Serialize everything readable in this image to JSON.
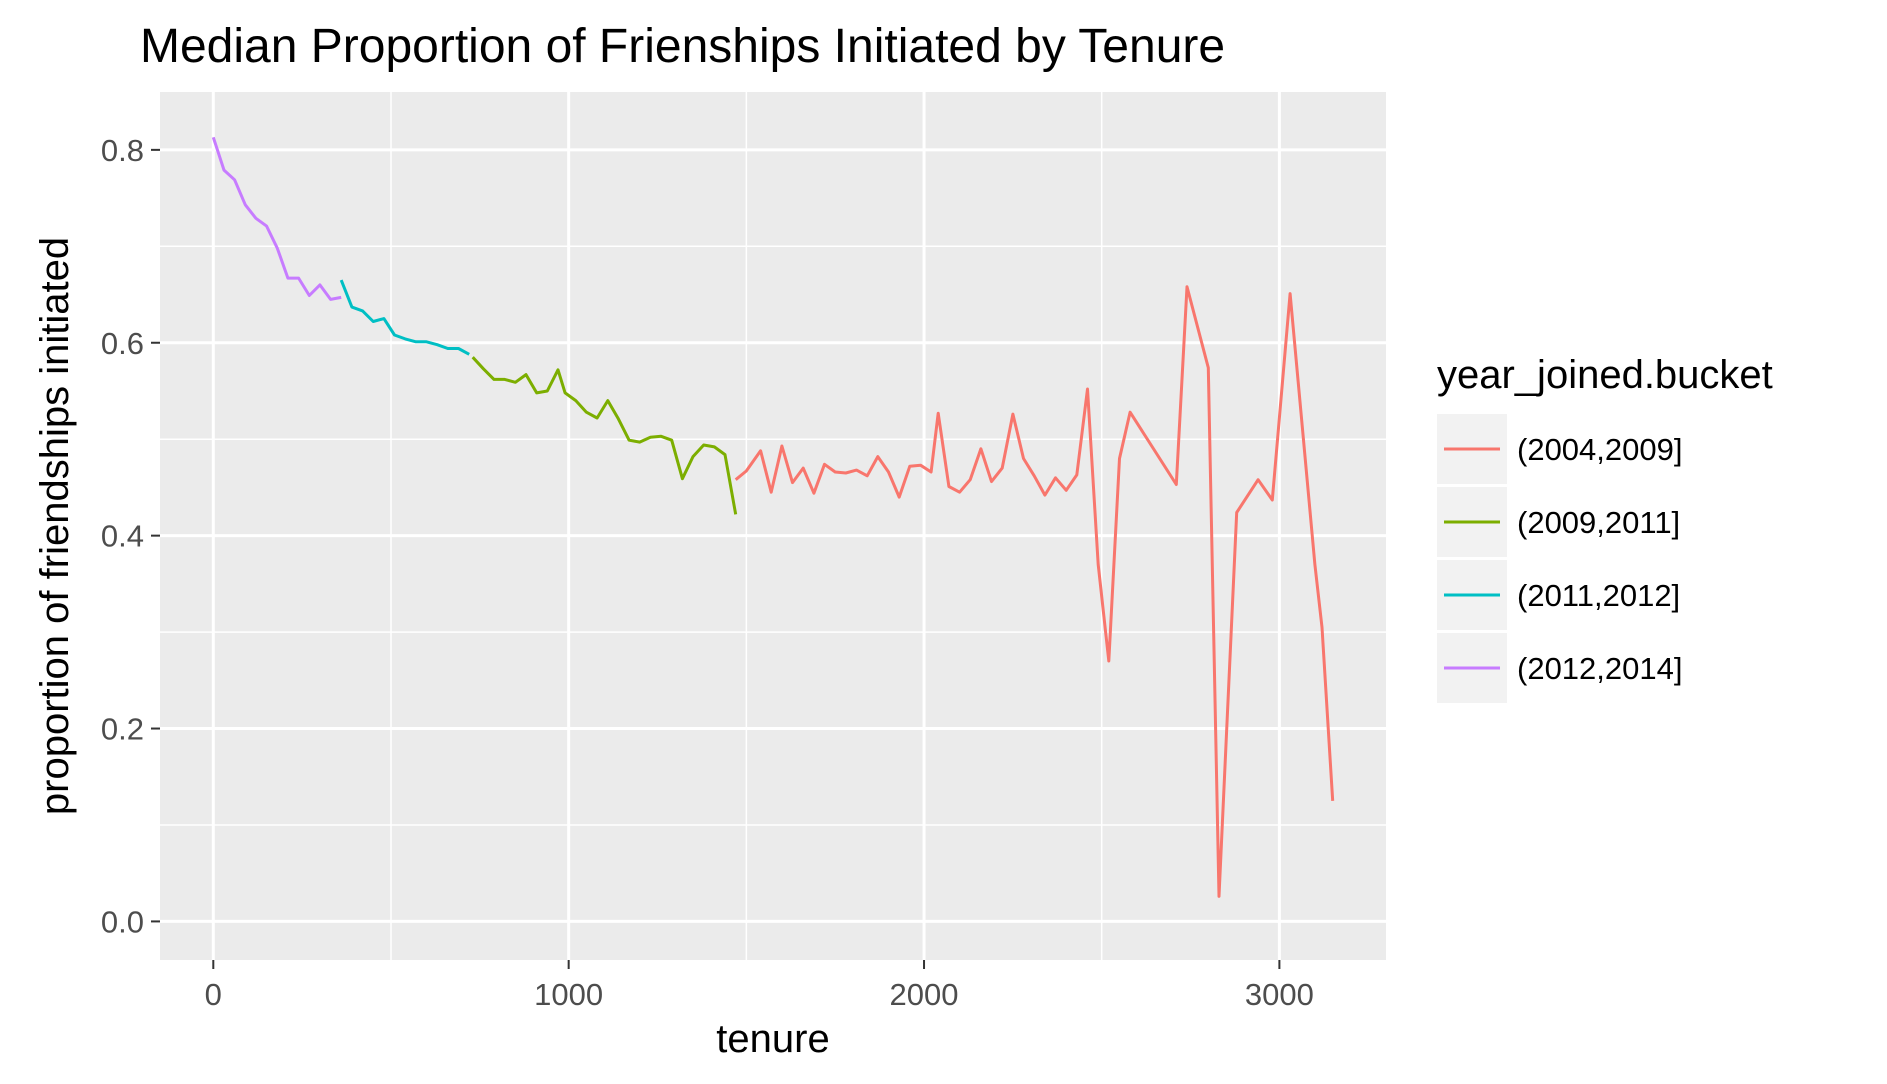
{
  "chart_data": {
    "type": "line",
    "title": "Median Proportion of Frienships Initiated by Tenure",
    "xlabel": "tenure",
    "ylabel": "proportion of friendships initiated",
    "xlim": [
      -150,
      3300
    ],
    "ylim": [
      -0.04,
      0.86
    ],
    "x_ticks": [
      0,
      1000,
      2000,
      3000
    ],
    "x_tick_labels": [
      "0",
      "1000",
      "2000",
      "3000"
    ],
    "y_ticks": [
      0.0,
      0.2,
      0.4,
      0.6,
      0.8
    ],
    "y_tick_labels": [
      "0.0",
      "0.2",
      "0.4",
      "0.6",
      "0.8"
    ],
    "grid": true,
    "legend": {
      "title": "year_joined.bucket",
      "placement": "right"
    },
    "series": [
      {
        "name": "(2004,2009]",
        "color": "#F8766D",
        "points": [
          [
            1470,
            0.458
          ],
          [
            1500,
            0.467
          ],
          [
            1540,
            0.488
          ],
          [
            1570,
            0.445
          ],
          [
            1600,
            0.493
          ],
          [
            1630,
            0.455
          ],
          [
            1660,
            0.47
          ],
          [
            1690,
            0.444
          ],
          [
            1720,
            0.474
          ],
          [
            1750,
            0.466
          ],
          [
            1780,
            0.465
          ],
          [
            1810,
            0.468
          ],
          [
            1840,
            0.462
          ],
          [
            1870,
            0.482
          ],
          [
            1900,
            0.466
          ],
          [
            1930,
            0.44
          ],
          [
            1960,
            0.472
          ],
          [
            1990,
            0.473
          ],
          [
            2020,
            0.466
          ],
          [
            2040,
            0.527
          ],
          [
            2070,
            0.451
          ],
          [
            2100,
            0.445
          ],
          [
            2130,
            0.458
          ],
          [
            2160,
            0.49
          ],
          [
            2190,
            0.456
          ],
          [
            2220,
            0.47
          ],
          [
            2250,
            0.526
          ],
          [
            2280,
            0.48
          ],
          [
            2310,
            0.462
          ],
          [
            2340,
            0.442
          ],
          [
            2370,
            0.46
          ],
          [
            2400,
            0.447
          ],
          [
            2430,
            0.463
          ],
          [
            2460,
            0.552
          ],
          [
            2490,
            0.37
          ],
          [
            2520,
            0.27
          ],
          [
            2550,
            0.48
          ],
          [
            2580,
            0.528
          ],
          [
            2710,
            0.453
          ],
          [
            2740,
            0.658
          ],
          [
            2800,
            0.574
          ],
          [
            2830,
            0.026
          ],
          [
            2880,
            0.424
          ],
          [
            2940,
            0.458
          ],
          [
            2980,
            0.437
          ],
          [
            3030,
            0.651
          ],
          [
            3100,
            0.37
          ],
          [
            3120,
            0.305
          ],
          [
            3150,
            0.125
          ]
        ]
      },
      {
        "name": "(2009,2011]",
        "color": "#7CAE00",
        "points": [
          [
            730,
            0.585
          ],
          [
            760,
            0.573
          ],
          [
            790,
            0.562
          ],
          [
            820,
            0.562
          ],
          [
            850,
            0.559
          ],
          [
            880,
            0.567
          ],
          [
            910,
            0.548
          ],
          [
            940,
            0.55
          ],
          [
            970,
            0.572
          ],
          [
            990,
            0.548
          ],
          [
            1020,
            0.54
          ],
          [
            1050,
            0.528
          ],
          [
            1080,
            0.522
          ],
          [
            1110,
            0.54
          ],
          [
            1140,
            0.521
          ],
          [
            1170,
            0.499
          ],
          [
            1200,
            0.497
          ],
          [
            1230,
            0.502
          ],
          [
            1260,
            0.503
          ],
          [
            1290,
            0.499
          ],
          [
            1320,
            0.459
          ],
          [
            1350,
            0.482
          ],
          [
            1380,
            0.494
          ],
          [
            1410,
            0.492
          ],
          [
            1440,
            0.484
          ],
          [
            1470,
            0.422
          ]
        ]
      },
      {
        "name": "(2011,2012]",
        "color": "#00BFC4",
        "points": [
          [
            360,
            0.665
          ],
          [
            390,
            0.637
          ],
          [
            420,
            0.633
          ],
          [
            450,
            0.622
          ],
          [
            480,
            0.625
          ],
          [
            510,
            0.608
          ],
          [
            540,
            0.604
          ],
          [
            570,
            0.601
          ],
          [
            600,
            0.601
          ],
          [
            630,
            0.598
          ],
          [
            660,
            0.594
          ],
          [
            690,
            0.594
          ],
          [
            720,
            0.588
          ]
        ]
      },
      {
        "name": "(2012,2014]",
        "color": "#C77CFF",
        "points": [
          [
            0,
            0.813
          ],
          [
            30,
            0.779
          ],
          [
            60,
            0.769
          ],
          [
            90,
            0.743
          ],
          [
            120,
            0.729
          ],
          [
            150,
            0.721
          ],
          [
            180,
            0.698
          ],
          [
            210,
            0.667
          ],
          [
            240,
            0.667
          ],
          [
            270,
            0.649
          ],
          [
            300,
            0.66
          ],
          [
            330,
            0.645
          ],
          [
            360,
            0.647
          ]
        ]
      }
    ]
  }
}
